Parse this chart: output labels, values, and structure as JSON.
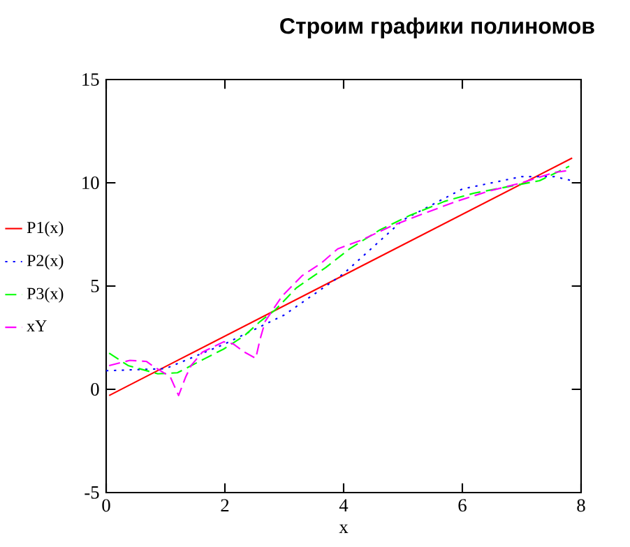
{
  "chart_data": {
    "type": "line",
    "title": "Строим графики полиномов",
    "xlabel": "x",
    "xlim": [
      0,
      8
    ],
    "ylim": [
      -5,
      15
    ],
    "xticks": [
      0,
      2,
      4,
      6,
      8
    ],
    "yticks": [
      -5,
      0,
      5,
      10,
      15
    ],
    "grid": false,
    "legend": "left",
    "marker": "none",
    "series": [
      {
        "name": "P1(x)",
        "color": "#ff0000",
        "line_style": "solid",
        "x": [
          0.05,
          7.85
        ],
        "values": [
          -0.3,
          11.2
        ]
      },
      {
        "name": "P2(x)",
        "color": "#0000ff",
        "line_style": "dotted",
        "x": [
          0.0,
          1.0,
          2.0,
          3.0,
          4.0,
          5.0,
          6.0,
          7.0,
          7.55,
          7.85
        ],
        "values": [
          0.9,
          1.0,
          2.2,
          3.6,
          5.6,
          8.2,
          9.7,
          10.3,
          10.3,
          10.1
        ]
      },
      {
        "name": "P3(x)",
        "color": "#00ff00",
        "line_style": "dashed",
        "x": [
          0.05,
          0.37,
          0.87,
          1.2,
          1.67,
          1.98,
          2.33,
          2.6,
          2.85,
          3.2,
          3.7,
          4.1,
          4.6,
          5.1,
          5.7,
          6.2,
          6.75,
          7.3,
          7.8
        ],
        "values": [
          1.75,
          1.15,
          0.75,
          0.8,
          1.5,
          1.95,
          2.6,
          3.3,
          3.85,
          4.9,
          5.9,
          6.8,
          7.7,
          8.4,
          9.1,
          9.5,
          9.8,
          10.1,
          10.8
        ]
      },
      {
        "name": "xY",
        "color": "#ff00ff",
        "line_style": "dashed",
        "x": [
          0.05,
          0.4,
          0.68,
          0.75,
          1.08,
          1.22,
          1.34,
          1.43,
          1.62,
          1.98,
          2.14,
          2.33,
          2.52,
          2.59,
          2.68,
          2.96,
          3.3,
          3.62,
          3.9,
          4.28,
          4.8,
          5.34,
          5.9,
          6.45,
          7.0,
          7.55,
          7.8
        ],
        "values": [
          1.15,
          1.4,
          1.35,
          1.2,
          0.6,
          -0.3,
          0.6,
          1.15,
          1.8,
          2.3,
          2.2,
          1.8,
          1.5,
          2.4,
          3.3,
          4.5,
          5.5,
          6.1,
          6.8,
          7.2,
          7.9,
          8.5,
          9.1,
          9.6,
          10.0,
          10.5,
          10.6
        ]
      }
    ]
  }
}
